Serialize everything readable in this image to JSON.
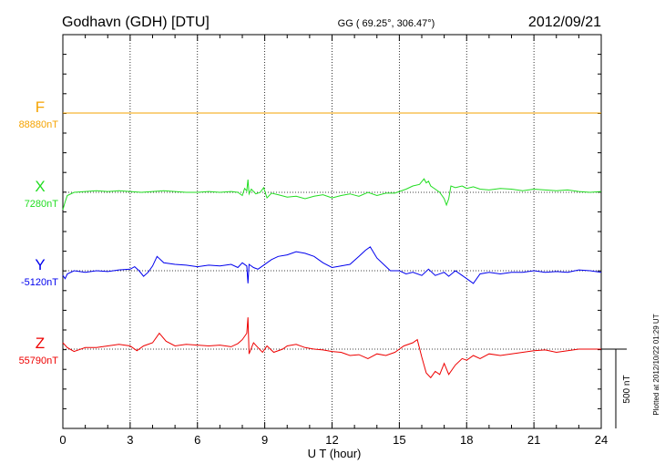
{
  "header": {
    "station": "Godhavn (GDH)  [DTU]",
    "coords": "GG ( 69.25°, 306.47°)",
    "date": "2012/09/21"
  },
  "plotted_note": "Plotted at 2012/10/22 01:29 UT",
  "scale_bar_label": "500 nT",
  "colors": {
    "F": "#f5a300",
    "X": "#22dd22",
    "Y": "#0000ee",
    "Z": "#ee0000",
    "axis": "#000000"
  },
  "chart_data": {
    "type": "line",
    "xlabel": "U T (hour)",
    "xlim": [
      0,
      24
    ],
    "xticks": [
      0,
      3,
      6,
      9,
      12,
      15,
      18,
      21,
      24
    ],
    "xtick_labels": [
      "0",
      "3",
      "6",
      "9",
      "12",
      "15",
      "18",
      "21",
      "24"
    ],
    "grid": true,
    "scale_bar_nT": 500,
    "series": [
      {
        "name": "F",
        "baseline_label": "88880nT",
        "x": [
          0,
          24
        ],
        "y": [
          0,
          0
        ]
      },
      {
        "name": "X",
        "baseline_label": "7280nT",
        "x": [
          0,
          0.1,
          0.2,
          0.5,
          1,
          1.5,
          2,
          2.5,
          3,
          3.5,
          4,
          4.5,
          5,
          5.5,
          6,
          6.5,
          7,
          7.5,
          7.8,
          8.0,
          8.1,
          8.2,
          8.25,
          8.3,
          8.4,
          8.6,
          8.8,
          8.95,
          9.1,
          9.3,
          9.6,
          10,
          10.4,
          10.8,
          11.2,
          11.6,
          12,
          12.4,
          12.8,
          13.2,
          13.6,
          14,
          14.4,
          14.8,
          15,
          15.3,
          15.6,
          15.9,
          16.1,
          16.2,
          16.3,
          16.4,
          16.6,
          16.8,
          17.0,
          17.1,
          17.2,
          17.3,
          17.5,
          17.8,
          18,
          18.3,
          18.6,
          19,
          19.5,
          20,
          20.5,
          21,
          21.5,
          22,
          22.5,
          23,
          23.5,
          24
        ],
        "y": [
          -110,
          -60,
          -20,
          0,
          5,
          10,
          5,
          10,
          5,
          0,
          5,
          10,
          5,
          0,
          0,
          5,
          0,
          5,
          0,
          -20,
          25,
          10,
          80,
          -10,
          20,
          -10,
          0,
          30,
          -35,
          -5,
          -15,
          -30,
          -25,
          -40,
          -25,
          -15,
          -35,
          -20,
          -10,
          -25,
          0,
          -20,
          -5,
          -5,
          5,
          20,
          40,
          50,
          85,
          60,
          70,
          40,
          20,
          0,
          -40,
          -80,
          -40,
          40,
          30,
          40,
          25,
          35,
          20,
          15,
          25,
          20,
          10,
          20,
          15,
          10,
          15,
          5,
          0,
          5
        ]
      },
      {
        "name": "Y",
        "baseline_label": "-5120nT",
        "x": [
          0,
          0.1,
          0.2,
          0.5,
          1,
          1.5,
          2,
          2.5,
          3,
          3.2,
          3.4,
          3.6,
          3.8,
          4.0,
          4.2,
          4.5,
          5,
          5.5,
          6,
          6.5,
          7,
          7.5,
          7.8,
          8.0,
          8.2,
          8.25,
          8.3,
          8.5,
          8.7,
          8.9,
          9.1,
          9.3,
          9.6,
          10,
          10.4,
          10.8,
          11.2,
          11.6,
          12,
          12.4,
          12.8,
          13.2,
          13.5,
          13.7,
          14,
          14.3,
          14.6,
          15,
          15.3,
          15.6,
          16,
          16.3,
          16.6,
          17,
          17.2,
          17.5,
          17.8,
          18,
          18.3,
          18.6,
          19,
          19.5,
          20,
          20.5,
          21,
          21.5,
          22,
          22.5,
          23,
          23.5,
          24
        ],
        "y": [
          -30,
          -50,
          -20,
          0,
          -10,
          0,
          -5,
          5,
          10,
          25,
          0,
          -35,
          -10,
          30,
          90,
          50,
          40,
          35,
          25,
          35,
          30,
          40,
          20,
          50,
          30,
          -80,
          40,
          20,
          10,
          30,
          50,
          70,
          90,
          100,
          120,
          110,
          90,
          50,
          20,
          30,
          40,
          90,
          130,
          150,
          80,
          40,
          0,
          0,
          -20,
          -10,
          -30,
          10,
          -30,
          -10,
          -35,
          0,
          -30,
          -50,
          -80,
          -20,
          -10,
          -20,
          -10,
          -10,
          0,
          -10,
          -5,
          -10,
          5,
          0,
          -10
        ]
      },
      {
        "name": "Z",
        "baseline_label": "55790nT",
        "x": [
          0,
          0.2,
          0.5,
          1,
          1.5,
          2,
          2.5,
          3,
          3.3,
          3.6,
          4,
          4.3,
          4.6,
          5,
          5.5,
          6,
          6.5,
          7,
          7.5,
          7.8,
          8.0,
          8.2,
          8.25,
          8.3,
          8.5,
          8.7,
          8.9,
          9.1,
          9.4,
          9.8,
          10,
          10.4,
          10.8,
          11.2,
          11.6,
          12,
          12.4,
          12.8,
          13.2,
          13.6,
          14,
          14.4,
          14.8,
          15.2,
          15.6,
          15.8,
          16.0,
          16.2,
          16.4,
          16.6,
          16.8,
          17.0,
          17.2,
          17.5,
          17.8,
          18,
          18.3,
          18.6,
          19,
          19.5,
          20,
          20.5,
          21,
          21.5,
          22,
          22.5,
          23,
          23.5,
          24
        ],
        "y": [
          40,
          10,
          -15,
          10,
          10,
          20,
          30,
          20,
          -10,
          20,
          40,
          100,
          50,
          20,
          30,
          25,
          20,
          25,
          15,
          35,
          60,
          100,
          200,
          -30,
          40,
          10,
          -20,
          20,
          -20,
          0,
          20,
          30,
          10,
          0,
          -5,
          -15,
          -20,
          -40,
          -35,
          -60,
          -30,
          -40,
          -20,
          20,
          40,
          60,
          -50,
          -150,
          -180,
          -140,
          -160,
          -90,
          -160,
          -100,
          -60,
          -70,
          -40,
          -60,
          -30,
          -40,
          -30,
          -20,
          -10,
          -5,
          -20,
          -10,
          0,
          0,
          0
        ]
      }
    ]
  }
}
